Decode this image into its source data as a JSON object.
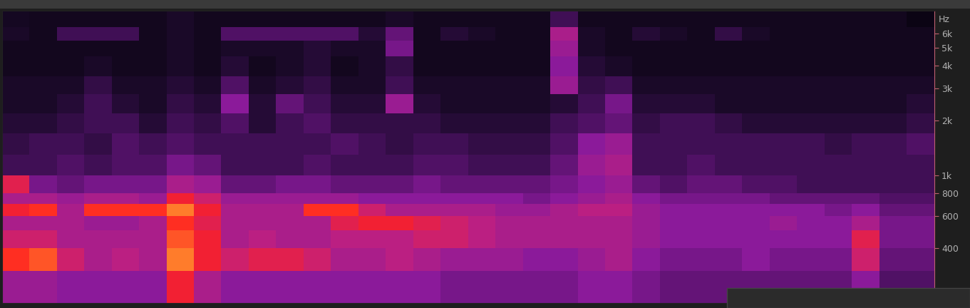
{
  "chart_data": {
    "type": "spectrogram",
    "y_label": "Hz",
    "log": "y",
    "tick_labels": "y",
    "ylim": [
      200,
      8000
    ],
    "yticks": [
      {
        "value": 6000,
        "label": "6k"
      },
      {
        "value": 5000,
        "label": "5k"
      },
      {
        "value": 4000,
        "label": "4k"
      },
      {
        "value": 3000,
        "label": "3k"
      },
      {
        "value": 2000,
        "label": "2k"
      },
      {
        "value": 1000,
        "label": "1k"
      },
      800,
      600,
      400
    ],
    "frequency_bins": [
      200,
      300,
      400,
      500,
      600,
      700,
      800,
      1000,
      1300,
      1700,
      2200,
      2800,
      3500,
      4500,
      5500,
      6500,
      8000
    ],
    "color_range": [
      0,
      1
    ],
    "cells": [
      [
        0.55,
        0.55,
        0.5,
        0.5,
        0.5,
        0.5,
        0.8,
        0.6,
        0.5,
        0.5,
        0.5,
        0.5,
        0.5,
        0.5,
        0.5,
        0.5,
        0.45,
        0.45,
        0.45,
        0.45,
        0.45,
        0.5,
        0.5,
        0.45,
        0.4,
        0.4,
        0.4,
        0.4,
        0.4,
        0.4,
        0.4,
        0.5,
        0.35,
        0.35
      ],
      [
        0.85,
        0.9,
        0.7,
        0.6,
        0.65,
        0.6,
        0.95,
        0.8,
        0.7,
        0.75,
        0.75,
        0.7,
        0.6,
        0.6,
        0.65,
        0.6,
        0.55,
        0.55,
        0.55,
        0.5,
        0.5,
        0.55,
        0.6,
        0.5,
        0.45,
        0.45,
        0.45,
        0.5,
        0.45,
        0.45,
        0.45,
        0.7,
        0.4,
        0.4
      ],
      [
        0.7,
        0.7,
        0.6,
        0.6,
        0.6,
        0.6,
        0.9,
        0.8,
        0.6,
        0.65,
        0.6,
        0.6,
        0.65,
        0.65,
        0.65,
        0.7,
        0.7,
        0.65,
        0.6,
        0.6,
        0.6,
        0.6,
        0.6,
        0.55,
        0.5,
        0.5,
        0.5,
        0.5,
        0.5,
        0.5,
        0.5,
        0.75,
        0.45,
        0.45
      ],
      [
        0.6,
        0.6,
        0.6,
        0.55,
        0.55,
        0.6,
        0.85,
        0.75,
        0.6,
        0.6,
        0.6,
        0.6,
        0.75,
        0.8,
        0.8,
        0.75,
        0.7,
        0.65,
        0.6,
        0.6,
        0.6,
        0.6,
        0.6,
        0.55,
        0.5,
        0.5,
        0.5,
        0.5,
        0.55,
        0.5,
        0.5,
        0.6,
        0.45,
        0.45
      ],
      [
        0.8,
        0.85,
        0.6,
        0.85,
        0.85,
        0.85,
        0.95,
        0.8,
        0.6,
        0.6,
        0.6,
        0.85,
        0.85,
        0.7,
        0.6,
        0.6,
        0.6,
        0.6,
        0.55,
        0.55,
        0.6,
        0.65,
        0.65,
        0.55,
        0.5,
        0.5,
        0.5,
        0.5,
        0.5,
        0.5,
        0.45,
        0.5,
        0.4,
        0.4
      ],
      [
        0.6,
        0.6,
        0.55,
        0.6,
        0.6,
        0.55,
        0.8,
        0.7,
        0.55,
        0.55,
        0.55,
        0.55,
        0.55,
        0.5,
        0.5,
        0.5,
        0.5,
        0.5,
        0.5,
        0.45,
        0.5,
        0.55,
        0.6,
        0.5,
        0.45,
        0.45,
        0.45,
        0.45,
        0.4,
        0.4,
        0.4,
        0.4,
        0.35,
        0.35
      ],
      [
        0.75,
        0.45,
        0.4,
        0.45,
        0.45,
        0.45,
        0.6,
        0.55,
        0.4,
        0.4,
        0.45,
        0.45,
        0.4,
        0.4,
        0.4,
        0.45,
        0.4,
        0.4,
        0.4,
        0.4,
        0.45,
        0.5,
        0.55,
        0.4,
        0.35,
        0.4,
        0.4,
        0.35,
        0.35,
        0.3,
        0.3,
        0.3,
        0.3,
        0.3
      ],
      [
        0.3,
        0.3,
        0.35,
        0.3,
        0.35,
        0.35,
        0.45,
        0.4,
        0.3,
        0.3,
        0.3,
        0.35,
        0.3,
        0.3,
        0.3,
        0.35,
        0.35,
        0.3,
        0.3,
        0.3,
        0.4,
        0.55,
        0.6,
        0.3,
        0.3,
        0.35,
        0.3,
        0.3,
        0.3,
        0.3,
        0.3,
        0.3,
        0.3,
        0.3
      ],
      [
        0.25,
        0.3,
        0.3,
        0.25,
        0.35,
        0.3,
        0.35,
        0.3,
        0.3,
        0.3,
        0.3,
        0.3,
        0.35,
        0.3,
        0.25,
        0.3,
        0.3,
        0.25,
        0.25,
        0.25,
        0.35,
        0.5,
        0.55,
        0.3,
        0.3,
        0.3,
        0.3,
        0.3,
        0.3,
        0.3,
        0.25,
        0.3,
        0.3,
        0.35
      ],
      [
        0.2,
        0.2,
        0.25,
        0.3,
        0.3,
        0.2,
        0.3,
        0.25,
        0.35,
        0.2,
        0.3,
        0.35,
        0.25,
        0.25,
        0.25,
        0.25,
        0.2,
        0.2,
        0.2,
        0.2,
        0.3,
        0.35,
        0.4,
        0.25,
        0.3,
        0.3,
        0.25,
        0.2,
        0.2,
        0.2,
        0.2,
        0.2,
        0.2,
        0.25
      ],
      [
        0.15,
        0.15,
        0.2,
        0.3,
        0.2,
        0.15,
        0.25,
        0.2,
        0.5,
        0.2,
        0.4,
        0.3,
        0.2,
        0.2,
        0.55,
        0.2,
        0.15,
        0.15,
        0.15,
        0.15,
        0.2,
        0.3,
        0.45,
        0.2,
        0.2,
        0.2,
        0.15,
        0.15,
        0.15,
        0.15,
        0.15,
        0.15,
        0.15,
        0.2
      ],
      [
        0.15,
        0.15,
        0.15,
        0.25,
        0.15,
        0.15,
        0.2,
        0.15,
        0.35,
        0.15,
        0.2,
        0.25,
        0.15,
        0.15,
        0.3,
        0.15,
        0.15,
        0.15,
        0.15,
        0.15,
        0.55,
        0.25,
        0.3,
        0.15,
        0.15,
        0.15,
        0.15,
        0.15,
        0.15,
        0.15,
        0.15,
        0.15,
        0.15,
        0.15
      ],
      [
        0.1,
        0.1,
        0.1,
        0.15,
        0.1,
        0.1,
        0.15,
        0.1,
        0.2,
        0.1,
        0.15,
        0.2,
        0.1,
        0.15,
        0.25,
        0.1,
        0.1,
        0.1,
        0.1,
        0.1,
        0.5,
        0.2,
        0.15,
        0.1,
        0.1,
        0.1,
        0.1,
        0.1,
        0.1,
        0.1,
        0.1,
        0.1,
        0.1,
        0.1
      ],
      [
        0.1,
        0.1,
        0.1,
        0.1,
        0.1,
        0.1,
        0.15,
        0.1,
        0.15,
        0.15,
        0.15,
        0.2,
        0.15,
        0.15,
        0.45,
        0.1,
        0.1,
        0.1,
        0.1,
        0.1,
        0.55,
        0.15,
        0.1,
        0.1,
        0.1,
        0.1,
        0.1,
        0.1,
        0.1,
        0.1,
        0.1,
        0.1,
        0.1,
        0.1
      ],
      [
        0.15,
        0.1,
        0.3,
        0.3,
        0.3,
        0.1,
        0.15,
        0.1,
        0.35,
        0.35,
        0.35,
        0.35,
        0.35,
        0.2,
        0.4,
        0.1,
        0.2,
        0.15,
        0.1,
        0.1,
        0.6,
        0.15,
        0.1,
        0.2,
        0.15,
        0.1,
        0.25,
        0.15,
        0.1,
        0.1,
        0.1,
        0.1,
        0.1,
        0.1
      ],
      [
        0.12,
        0.1,
        0.1,
        0.1,
        0.1,
        0.1,
        0.15,
        0.1,
        0.1,
        0.1,
        0.1,
        0.1,
        0.1,
        0.1,
        0.15,
        0.1,
        0.1,
        0.1,
        0.1,
        0.1,
        0.3,
        0.1,
        0.1,
        0.1,
        0.1,
        0.1,
        0.1,
        0.1,
        0.1,
        0.1,
        0.1,
        0.1,
        0.1,
        0.05
      ]
    ]
  }
}
